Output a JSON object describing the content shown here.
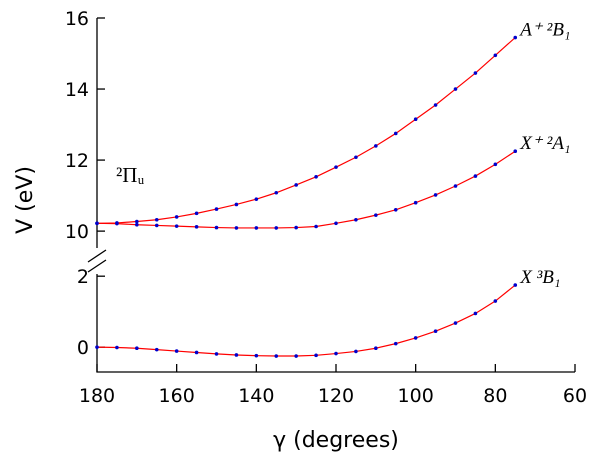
{
  "chart_data": {
    "type": "line",
    "x_label": "γ (degrees)",
    "y_label": "V (eV)",
    "annotation": "²Πᵤ",
    "xlim": [
      180,
      60
    ],
    "xticks": [
      180,
      160,
      140,
      120,
      100,
      80,
      60
    ],
    "y_segments": [
      {
        "ylim": [
          -0.7,
          2.4
        ],
        "yticks": [
          0,
          2
        ]
      },
      {
        "ylim": [
          9.75,
          16
        ],
        "yticks": [
          10,
          12,
          14,
          16
        ]
      }
    ],
    "x": [
      180,
      175,
      170,
      165,
      160,
      155,
      150,
      145,
      140,
      135,
      130,
      125,
      120,
      115,
      110,
      105,
      100,
      95,
      90,
      85,
      80,
      75
    ],
    "series": [
      {
        "name": "A⁺ ²B₁",
        "segment": 1,
        "color": "#ff0000",
        "marker_color": "#0000cc",
        "values": [
          10.22,
          10.23,
          10.27,
          10.32,
          10.4,
          10.5,
          10.62,
          10.75,
          10.9,
          11.08,
          11.3,
          11.53,
          11.8,
          12.08,
          12.4,
          12.75,
          13.15,
          13.55,
          14.0,
          14.45,
          14.95,
          15.45
        ]
      },
      {
        "name": "X⁺ ²A₁",
        "segment": 1,
        "color": "#ff0000",
        "marker_color": "#0000cc",
        "values": [
          10.22,
          10.21,
          10.18,
          10.16,
          10.14,
          10.12,
          10.1,
          10.09,
          10.09,
          10.09,
          10.1,
          10.13,
          10.22,
          10.32,
          10.45,
          10.6,
          10.8,
          11.02,
          11.27,
          11.55,
          11.88,
          12.25
        ]
      },
      {
        "name": "X ³B₁",
        "segment": 0,
        "color": "#ff0000",
        "marker_color": "#0000cc",
        "values": [
          0,
          -0.01,
          -0.03,
          -0.07,
          -0.11,
          -0.15,
          -0.19,
          -0.22,
          -0.24,
          -0.25,
          -0.25,
          -0.23,
          -0.18,
          -0.12,
          -0.03,
          0.1,
          0.26,
          0.45,
          0.68,
          0.95,
          1.3,
          1.75
        ]
      }
    ]
  }
}
